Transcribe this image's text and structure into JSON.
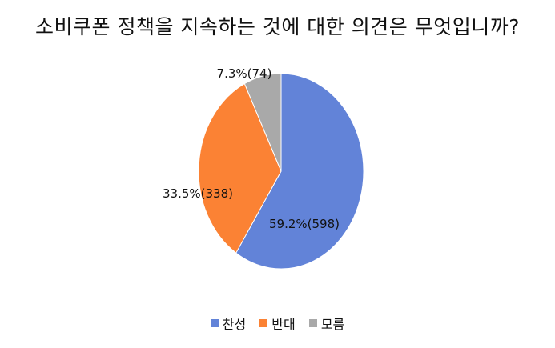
{
  "chart_data": {
    "type": "pie",
    "title": "소비쿠폰 정책을 지속하는 것에 대한 의견은 무엇입니까?",
    "slices": [
      {
        "name": "찬성",
        "percent": 59.2,
        "count": 598,
        "label": "59.2%(598)",
        "color": "#6283d8"
      },
      {
        "name": "반대",
        "percent": 33.5,
        "count": 338,
        "label": "33.5%(338)",
        "color": "#fb8234"
      },
      {
        "name": "모름",
        "percent": 7.3,
        "count": 74,
        "label": "7.3%(74)",
        "color": "#a9a9a9"
      }
    ],
    "legend_position": "bottom"
  }
}
